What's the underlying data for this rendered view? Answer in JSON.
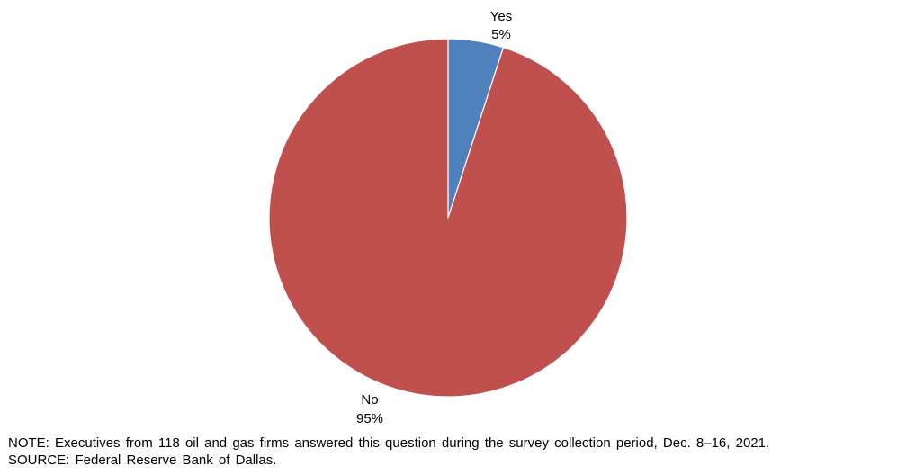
{
  "chart_data": {
    "type": "pie",
    "slices": [
      {
        "label": "Yes",
        "value": 5,
        "value_label": "5%",
        "color": "#4f81bd"
      },
      {
        "label": "No",
        "value": 95,
        "value_label": "95%",
        "color": "#c0504d"
      }
    ],
    "start_angle": "12 o'clock",
    "direction": "clockwise",
    "legend": "none",
    "data_labels": "outside"
  },
  "notes": {
    "note": "NOTE: Executives from 118 oil and gas firms answered this question during the survey collection period, Dec. 8–16, 2021.",
    "source": "SOURCE: Federal Reserve Bank of Dallas."
  }
}
